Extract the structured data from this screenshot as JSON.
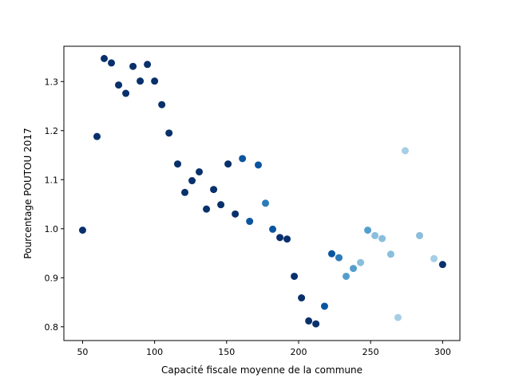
{
  "chart_data": {
    "type": "scatter",
    "title": "",
    "xlabel": "Capacité fiscale moyenne de la commune",
    "ylabel": "Pourcentage POUTOU 2017",
    "xlim": [
      37,
      312
    ],
    "ylim": [
      0.772,
      1.372
    ],
    "xticks": [
      50,
      100,
      150,
      200,
      250,
      300
    ],
    "yticks": [
      0.8,
      0.9,
      1.0,
      1.1,
      1.2,
      1.3
    ],
    "xtick_labels": [
      "50",
      "100",
      "150",
      "200",
      "250",
      "300"
    ],
    "ytick_labels": [
      "0.8",
      "0.9",
      "1.0",
      "1.1",
      "1.2",
      "1.3"
    ],
    "grid": false,
    "colors": {
      "dark": "#08306b",
      "mid_dark": "#0b559f",
      "mid": "#2b7bba",
      "mid_light": "#539ecd",
      "light": "#89bedc",
      "pale": "#a6cee4"
    },
    "points": [
      {
        "x": 50,
        "y": 0.997,
        "c": "dark"
      },
      {
        "x": 60,
        "y": 1.188,
        "c": "dark"
      },
      {
        "x": 65,
        "y": 1.347,
        "c": "dark"
      },
      {
        "x": 70,
        "y": 1.338,
        "c": "dark"
      },
      {
        "x": 75,
        "y": 1.293,
        "c": "dark"
      },
      {
        "x": 80,
        "y": 1.276,
        "c": "dark"
      },
      {
        "x": 85,
        "y": 1.331,
        "c": "dark"
      },
      {
        "x": 90,
        "y": 1.301,
        "c": "dark"
      },
      {
        "x": 95,
        "y": 1.335,
        "c": "dark"
      },
      {
        "x": 100,
        "y": 1.301,
        "c": "dark"
      },
      {
        "x": 105,
        "y": 1.253,
        "c": "dark"
      },
      {
        "x": 110,
        "y": 1.195,
        "c": "dark"
      },
      {
        "x": 116,
        "y": 1.132,
        "c": "dark"
      },
      {
        "x": 121,
        "y": 1.074,
        "c": "dark"
      },
      {
        "x": 126,
        "y": 1.098,
        "c": "dark"
      },
      {
        "x": 131,
        "y": 1.116,
        "c": "dark"
      },
      {
        "x": 136,
        "y": 1.04,
        "c": "dark"
      },
      {
        "x": 141,
        "y": 1.08,
        "c": "dark"
      },
      {
        "x": 146,
        "y": 1.049,
        "c": "dark"
      },
      {
        "x": 151,
        "y": 1.132,
        "c": "dark"
      },
      {
        "x": 156,
        "y": 1.03,
        "c": "dark"
      },
      {
        "x": 161,
        "y": 1.143,
        "c": "mid_dark"
      },
      {
        "x": 166,
        "y": 1.015,
        "c": "mid_dark"
      },
      {
        "x": 172,
        "y": 1.13,
        "c": "mid_dark"
      },
      {
        "x": 177,
        "y": 1.052,
        "c": "mid"
      },
      {
        "x": 182,
        "y": 0.999,
        "c": "mid_dark"
      },
      {
        "x": 187,
        "y": 0.982,
        "c": "dark"
      },
      {
        "x": 192,
        "y": 0.979,
        "c": "dark"
      },
      {
        "x": 197,
        "y": 0.903,
        "c": "dark"
      },
      {
        "x": 202,
        "y": 0.859,
        "c": "dark"
      },
      {
        "x": 207,
        "y": 0.812,
        "c": "dark"
      },
      {
        "x": 212,
        "y": 0.806,
        "c": "dark"
      },
      {
        "x": 218,
        "y": 0.842,
        "c": "mid_dark"
      },
      {
        "x": 223,
        "y": 0.949,
        "c": "mid_dark"
      },
      {
        "x": 228,
        "y": 0.941,
        "c": "mid"
      },
      {
        "x": 233,
        "y": 0.903,
        "c": "mid_light"
      },
      {
        "x": 238,
        "y": 0.919,
        "c": "mid_light"
      },
      {
        "x": 243,
        "y": 0.931,
        "c": "light"
      },
      {
        "x": 248,
        "y": 0.997,
        "c": "mid_light"
      },
      {
        "x": 253,
        "y": 0.986,
        "c": "light"
      },
      {
        "x": 258,
        "y": 0.98,
        "c": "light"
      },
      {
        "x": 264,
        "y": 0.948,
        "c": "light"
      },
      {
        "x": 269,
        "y": 0.819,
        "c": "pale"
      },
      {
        "x": 274,
        "y": 1.159,
        "c": "pale"
      },
      {
        "x": 284,
        "y": 0.986,
        "c": "light"
      },
      {
        "x": 294,
        "y": 0.939,
        "c": "pale"
      },
      {
        "x": 300,
        "y": 0.927,
        "c": "dark"
      }
    ]
  }
}
